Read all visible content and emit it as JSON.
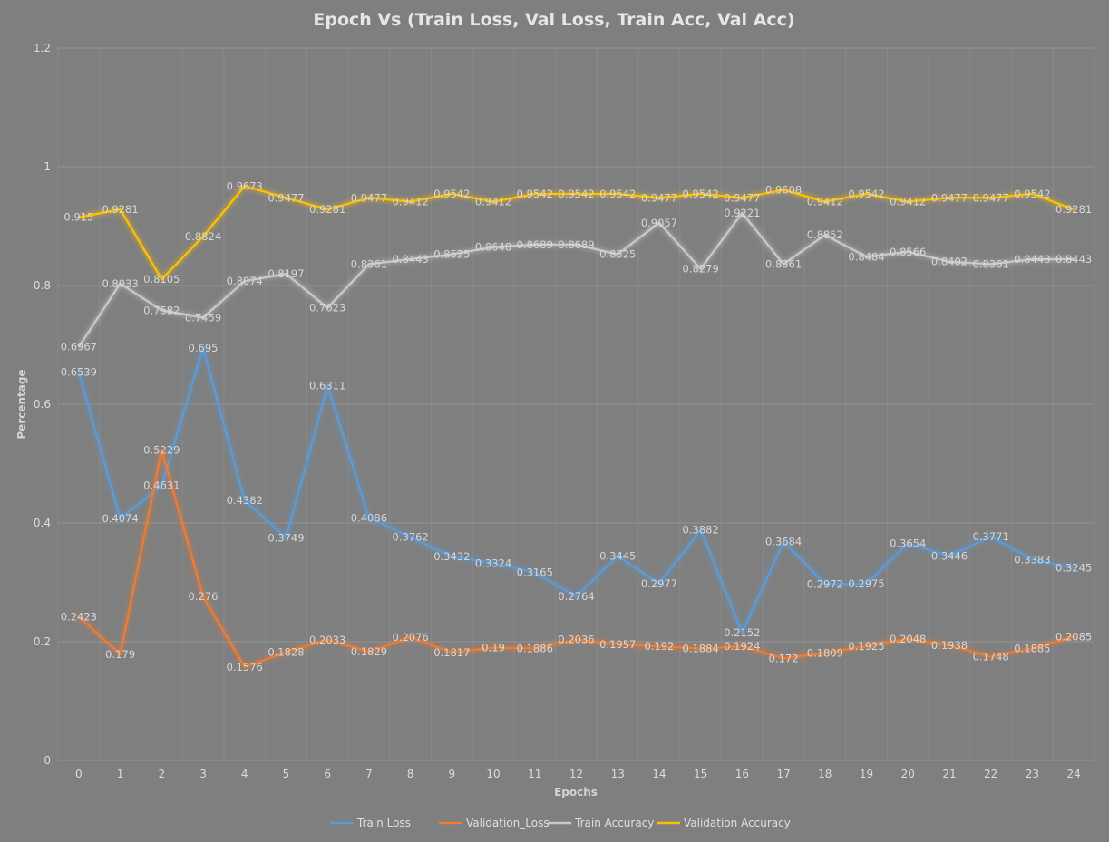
{
  "chart_data": {
    "type": "line",
    "title": "Epoch Vs (Train Loss, Val Loss, Train Acc, Val Acc)",
    "xlabel": "Epochs",
    "ylabel": "Percentage",
    "x": [
      0,
      1,
      2,
      3,
      4,
      5,
      6,
      7,
      8,
      9,
      10,
      11,
      12,
      13,
      14,
      15,
      16,
      17,
      18,
      19,
      20,
      21,
      22,
      23,
      24
    ],
    "y_ticks": [
      "0",
      "0.2",
      "0.4",
      "0.6",
      "0.8",
      "1",
      "1.2"
    ],
    "ylim": [
      0,
      1.2
    ],
    "grid": true,
    "legend_position": "bottom",
    "series": [
      {
        "name": "Train Loss",
        "color": "#5b9bd5",
        "values": [
          0.6539,
          0.4074,
          0.4631,
          0.695,
          0.4382,
          0.3749,
          0.6311,
          0.4086,
          0.3762,
          0.3432,
          0.3324,
          0.3165,
          0.2764,
          0.3445,
          0.2977,
          0.3882,
          0.2152,
          0.3684,
          0.2972,
          0.2975,
          0.3654,
          0.3446,
          0.3771,
          0.3383,
          0.3245
        ],
        "labels": [
          "0.6539",
          "0.4074",
          "0.4631",
          "0.695",
          "0.4382",
          "0.3749",
          "0.6311",
          "0.4086",
          "0.3762",
          "0.3432",
          "0.3324",
          "0.3165",
          "0.2764",
          "0.3445",
          "0.2977",
          "0.3882",
          "0.2152",
          "0.3684",
          "0.2972",
          "0.2975",
          "0.3654",
          "0.3446",
          "0.3771",
          "0.3383",
          "0.3245"
        ]
      },
      {
        "name": "Validation_Loss",
        "color": "#ed7d31",
        "values": [
          0.2423,
          0.179,
          0.5229,
          0.276,
          0.1576,
          0.1828,
          0.2033,
          0.1829,
          0.2076,
          0.1817,
          0.19,
          0.1886,
          0.2036,
          0.1957,
          0.192,
          0.1884,
          0.1924,
          0.172,
          0.1809,
          0.1925,
          0.2048,
          0.1938,
          0.1748,
          0.1885,
          0.2085
        ],
        "labels": [
          "0.2423",
          "0.179",
          "0.5229",
          "0.276",
          "0.1576",
          "0.1828",
          "0.2033",
          "0.1829",
          "0.2076",
          "0.1817",
          "0.19",
          "0.1886",
          "0.2036",
          "0.1957",
          "0.192",
          "0.1884",
          "0.1924",
          "0.172",
          "0.1809",
          "0.1925",
          "0.2048",
          "0.1938",
          "0.1748",
          "0.1885",
          "0.2085"
        ]
      },
      {
        "name": "Train Accuracy",
        "color": "#c9c9c9",
        "values": [
          0.6967,
          0.8033,
          0.7582,
          0.7459,
          0.8074,
          0.8197,
          0.7623,
          0.8361,
          0.8443,
          0.8525,
          0.8648,
          0.8689,
          0.8689,
          0.8525,
          0.9057,
          0.8279,
          0.9221,
          0.8361,
          0.8852,
          0.8484,
          0.8566,
          0.8402,
          0.8361,
          0.8443,
          0.8443
        ],
        "labels": [
          "0.6967",
          "0.8033",
          "0.7582",
          "0.7459",
          "0.8074",
          "0.8197",
          "0.7623",
          "0.8361",
          "0.8443",
          "0.8525",
          "0.8648",
          "0.8689",
          "0.8689",
          "0.8525",
          "0.9057",
          "0.8279",
          "0.9221",
          "0.8361",
          "0.8852",
          "0.8484",
          "0.8566",
          "0.8402",
          "0.8361",
          "0.8443",
          "0.8443"
        ]
      },
      {
        "name": "Validation Accuracy",
        "color": "#ffc000",
        "values": [
          0.915,
          0.9281,
          0.8105,
          0.8824,
          0.9673,
          0.9477,
          0.9281,
          0.9477,
          0.9412,
          0.9542,
          0.9412,
          0.9542,
          0.9542,
          0.9542,
          0.9477,
          0.9542,
          0.9477,
          0.9608,
          0.9412,
          0.9542,
          0.9412,
          0.9477,
          0.9477,
          0.9542,
          0.9281
        ],
        "labels": [
          "0.915",
          "0.9281",
          "0.8105",
          "0.8824",
          "0.9673",
          "0.9477",
          "0.9281",
          "0.9477",
          "0.9412",
          "0.9542",
          "0.9412",
          "0.9542",
          "0.9542",
          "0.9542",
          "0.9477",
          "0.9542",
          "0.9477",
          "0.9608",
          "0.9412",
          "0.9542",
          "0.9412",
          "0.9477",
          "0.9477",
          "0.9542",
          "0.9281"
        ]
      }
    ]
  }
}
